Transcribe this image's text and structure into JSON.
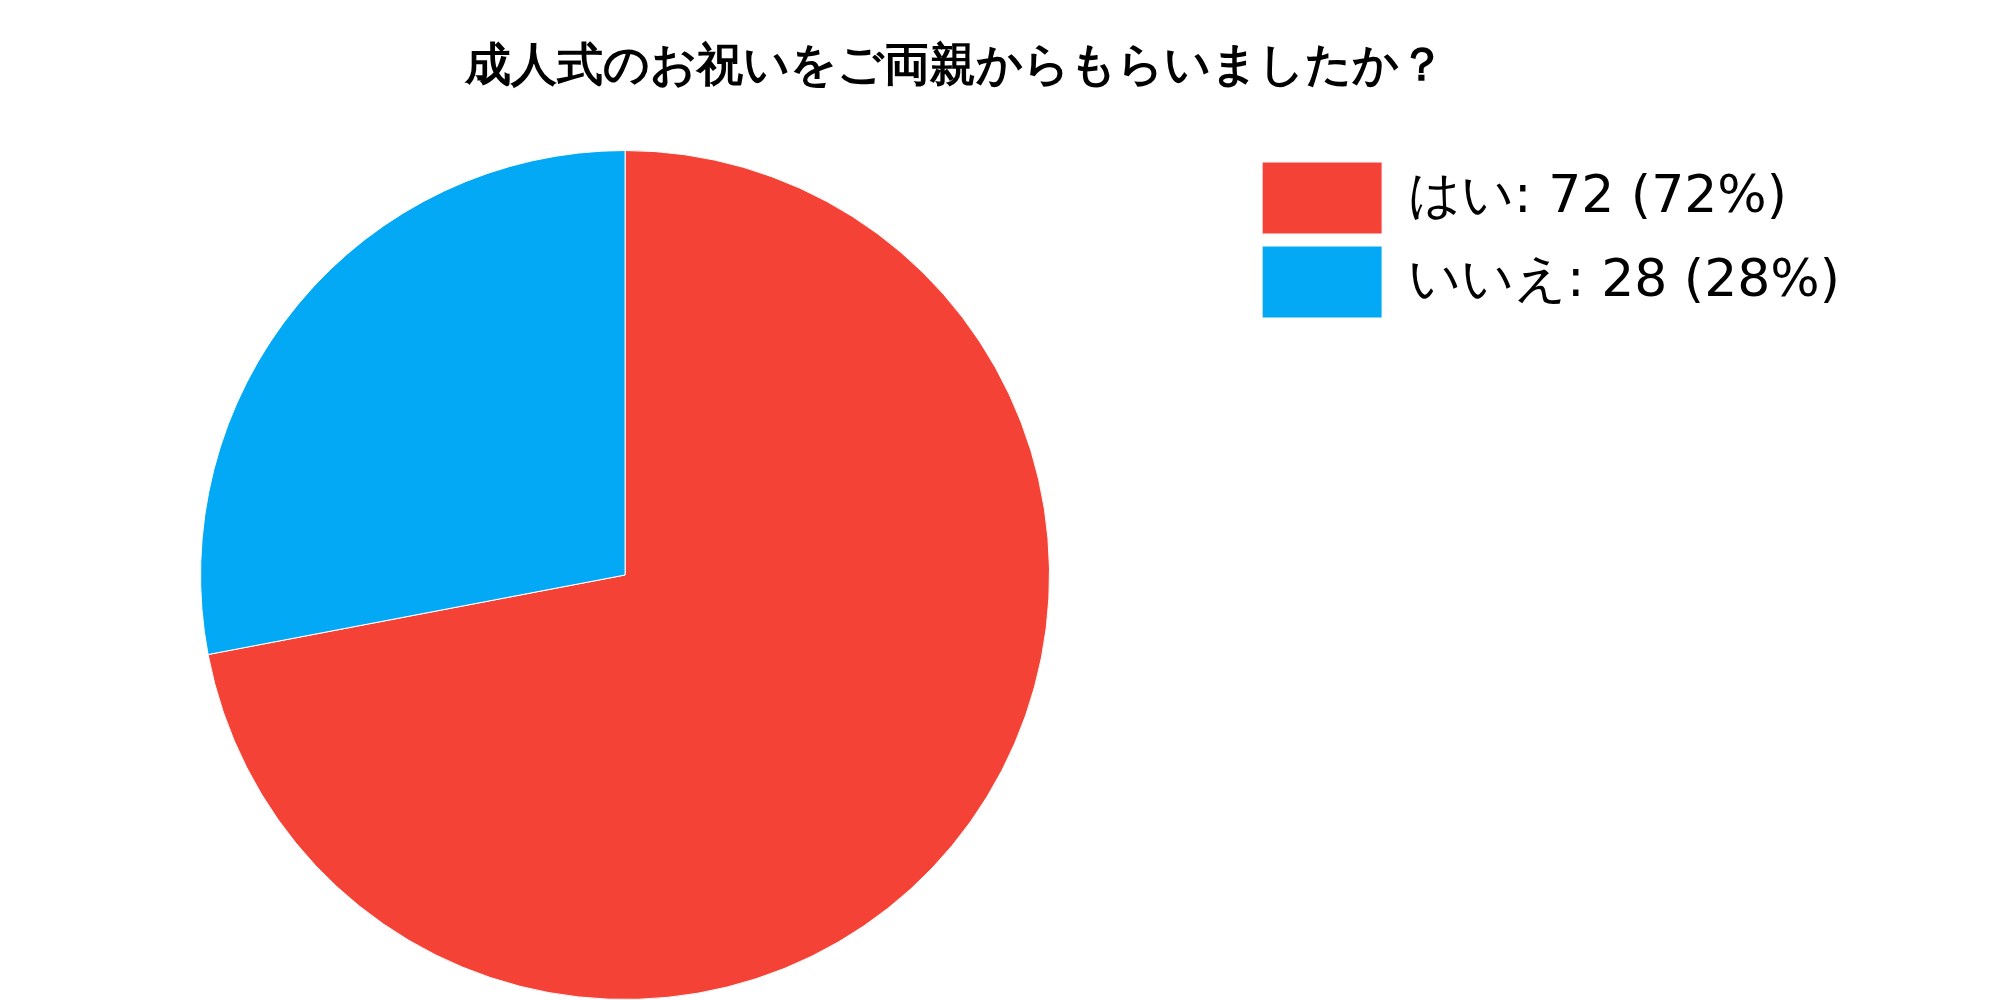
{
  "chart_data": {
    "type": "pie",
    "title": "成人式のお祝いをご両親からもらいましたか？",
    "categories": [
      "はい",
      "いいえ"
    ],
    "values": [
      72,
      28
    ],
    "colors": [
      "#f44336",
      "#03a9f4"
    ],
    "value_labels": [
      "72 (72%)",
      "28 (28%)"
    ],
    "legend": "top right"
  }
}
